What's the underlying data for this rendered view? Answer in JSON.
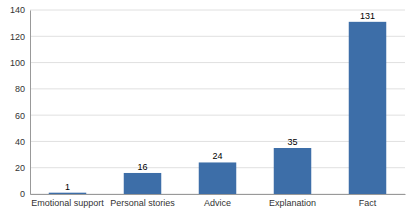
{
  "chart_data": {
    "type": "bar",
    "categories": [
      "Emotional support",
      "Personal stories",
      "Advice",
      "Explanation",
      "Fact"
    ],
    "values": [
      1,
      16,
      24,
      35,
      131
    ],
    "color": "#3d6ea8",
    "ylim": [
      0,
      140
    ],
    "yticks": [
      0,
      20,
      40,
      60,
      80,
      100,
      120,
      140
    ],
    "grid": true,
    "data_labels": true
  }
}
